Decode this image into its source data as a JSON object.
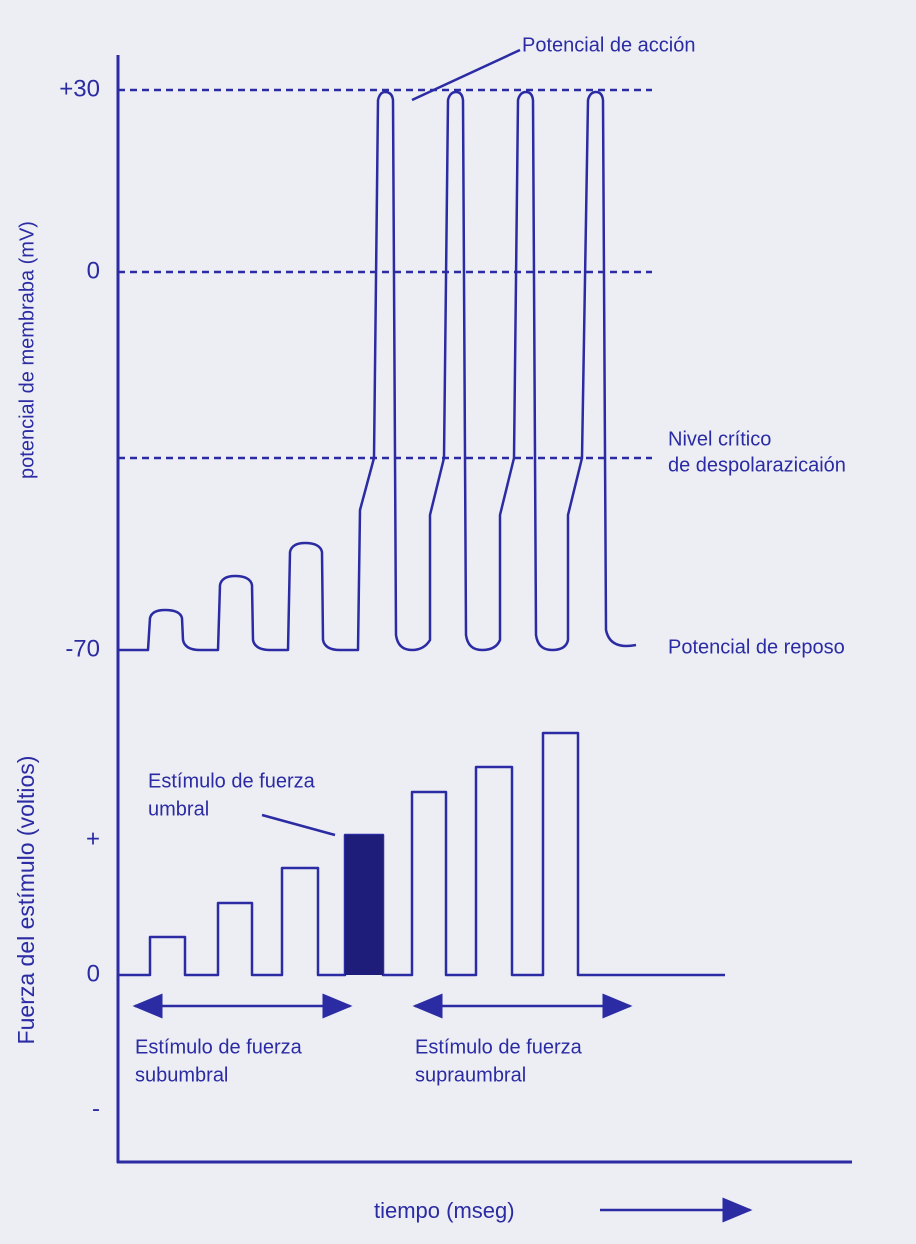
{
  "membrane_panel": {
    "axis_label": "potencial de membraba (mV)",
    "ticks": [
      "+30",
      "0",
      "-70"
    ],
    "annotations": {
      "action_potential": "Potencial de acción",
      "critical_level": [
        "Nivel crítico",
        "de despolarazicaión"
      ],
      "resting_potential": "Potencial de reposo"
    }
  },
  "stimulus_panel": {
    "axis_label": "Fuerza del estímulo (voltios)",
    "ticks": [
      "+",
      "0",
      "-"
    ],
    "annotations": {
      "threshold": [
        "Estímulo de fuerza",
        "umbral"
      ],
      "subthreshold": [
        "Estímulo de fuerza",
        "subumbral"
      ],
      "suprathreshold": [
        "Estímulo de fuerza",
        "supraumbral"
      ]
    }
  },
  "x_axis_label": "tiempo (mseg)"
}
